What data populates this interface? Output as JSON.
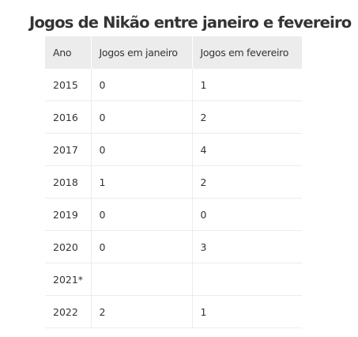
{
  "title": "Jogos de Nikão entre janeiro e fevereiro",
  "table": {
    "headers": [
      "Ano",
      "Jogos em janeiro",
      "Jogos em fevereiro"
    ],
    "rows": [
      [
        "2015",
        "0",
        "1"
      ],
      [
        "2016",
        "0",
        "2"
      ],
      [
        "2017",
        "0",
        "4"
      ],
      [
        "2018",
        "1",
        "2"
      ],
      [
        "2019",
        "0",
        "0"
      ],
      [
        "2020",
        "0",
        "3"
      ],
      [
        "2021*",
        "",
        ""
      ],
      [
        "2022",
        "2",
        "1"
      ]
    ]
  }
}
